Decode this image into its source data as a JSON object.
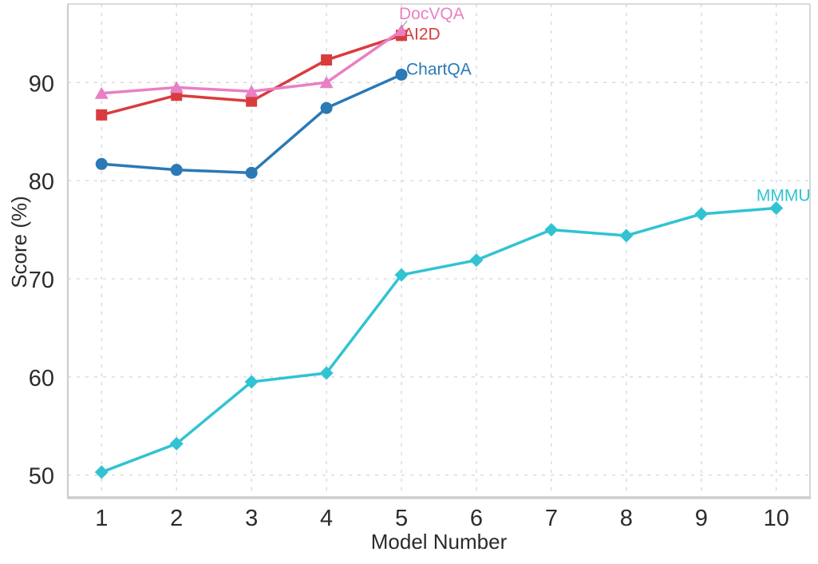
{
  "figure": {
    "background": "#ffffff",
    "text_color": "#2b2b2b",
    "grid_color": "#d6d6d6",
    "spine_color": "#cdcdcd",
    "leader_color": "#8a8a8a"
  },
  "chart_data": {
    "type": "line",
    "title": "",
    "xlabel": "Model Number",
    "ylabel": "Score (%)",
    "xlim": [
      0.55,
      10.45
    ],
    "ylim": [
      47.7,
      98.0
    ],
    "xticks": [
      1,
      2,
      3,
      4,
      5,
      6,
      7,
      8,
      9,
      10
    ],
    "yticks": [
      50,
      60,
      70,
      80,
      90
    ],
    "grid": true,
    "legend_position": "inline-end-labels",
    "series": [
      {
        "name": "MMMU",
        "marker": "diamond",
        "color": "#31c3d2",
        "x": [
          1,
          2,
          3,
          4,
          5,
          6,
          7,
          8,
          9,
          10
        ],
        "values": [
          50.3,
          53.2,
          59.5,
          60.4,
          70.4,
          71.9,
          75.0,
          74.4,
          76.6,
          77.2
        ],
        "label": {
          "dx": 9,
          "dy": -9,
          "anchor": "middle"
        }
      },
      {
        "name": "ChartQA",
        "marker": "circle",
        "color": "#2b79b5",
        "x": [
          1,
          2,
          3,
          4,
          5
        ],
        "values": [
          81.7,
          81.1,
          80.8,
          87.4,
          90.8
        ],
        "label": {
          "dx": 6,
          "dy": 0,
          "anchor": "start"
        }
      },
      {
        "name": "AI2D",
        "marker": "square",
        "color": "#d93c3e",
        "x": [
          1,
          2,
          3,
          4,
          5
        ],
        "values": [
          86.7,
          88.7,
          88.1,
          92.3,
          94.8
        ],
        "label": {
          "dx": 2,
          "dy": 5,
          "anchor": "start"
        }
      },
      {
        "name": "DocVQA",
        "marker": "triangle",
        "color": "#e97fc4",
        "x": [
          1,
          2,
          3,
          4,
          5
        ],
        "values": [
          88.9,
          89.5,
          89.1,
          90.0,
          95.3
        ],
        "label": {
          "dx": -3,
          "dy": -14,
          "anchor": "start"
        },
        "leader": {
          "dx1": 7,
          "dy1": -12,
          "dx2": 0.5,
          "dy2": -4
        }
      }
    ]
  }
}
